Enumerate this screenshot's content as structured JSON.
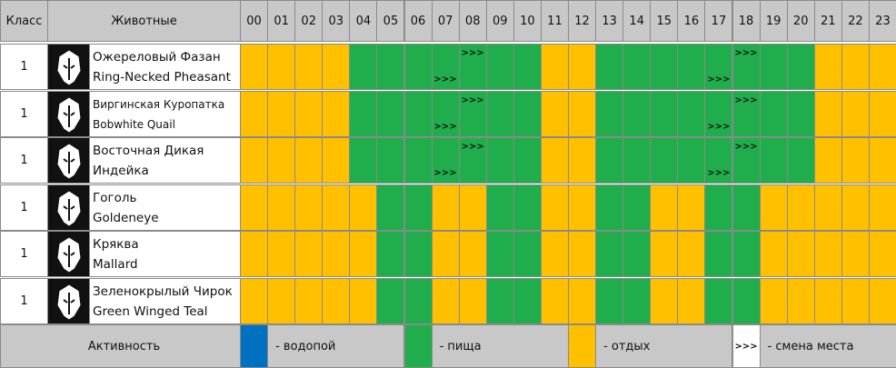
{
  "header": {
    "class": "Класс",
    "animals": "Животные",
    "hours": [
      "00",
      "01",
      "02",
      "03",
      "04",
      "05",
      "06",
      "07",
      "08",
      "09",
      "10",
      "11",
      "12",
      "13",
      "14",
      "15",
      "16",
      "17",
      "18",
      "19",
      "20",
      "21",
      "22",
      "23"
    ]
  },
  "rows": [
    {
      "class": "1",
      "name_ru": "Ожереловый Фазан",
      "name_en": "Ring-Necked Pheasant",
      "cells": [
        {
          "s": "y"
        },
        {
          "s": "y"
        },
        {
          "s": "y"
        },
        {
          "s": "y"
        },
        {
          "s": "g"
        },
        {
          "s": "g"
        },
        {
          "s": "g"
        },
        {
          "s": "g",
          "arrow_bottom": ">>>"
        },
        {
          "s": "g",
          "arrow_top": ">>>"
        },
        {
          "s": "g"
        },
        {
          "s": "g"
        },
        {
          "s": "y"
        },
        {
          "s": "y"
        },
        {
          "s": "g"
        },
        {
          "s": "g"
        },
        {
          "s": "g"
        },
        {
          "s": "g"
        },
        {
          "s": "g",
          "arrow_bottom": ">>>"
        },
        {
          "s": "g",
          "arrow_top": ">>>"
        },
        {
          "s": "g"
        },
        {
          "s": "g"
        },
        {
          "s": "y"
        },
        {
          "s": "y"
        },
        {
          "s": "y"
        }
      ]
    },
    {
      "class": "1",
      "name_ru": "Виргинская Куропатка",
      "name_en": "Bobwhite Quail",
      "cells": [
        {
          "s": "y"
        },
        {
          "s": "y"
        },
        {
          "s": "y"
        },
        {
          "s": "y"
        },
        {
          "s": "g"
        },
        {
          "s": "g"
        },
        {
          "s": "g"
        },
        {
          "s": "g",
          "arrow_bottom": ">>>"
        },
        {
          "s": "g",
          "arrow_top": ">>>"
        },
        {
          "s": "g"
        },
        {
          "s": "g"
        },
        {
          "s": "y"
        },
        {
          "s": "y"
        },
        {
          "s": "g"
        },
        {
          "s": "g"
        },
        {
          "s": "g"
        },
        {
          "s": "g"
        },
        {
          "s": "g",
          "arrow_bottom": ">>>"
        },
        {
          "s": "g",
          "arrow_top": ">>>"
        },
        {
          "s": "g"
        },
        {
          "s": "g"
        },
        {
          "s": "y"
        },
        {
          "s": "y"
        },
        {
          "s": "y"
        }
      ]
    },
    {
      "class": "1",
      "name_ru": "Восточная Дикая",
      "name_en": "Индейка",
      "cells": [
        {
          "s": "y"
        },
        {
          "s": "y"
        },
        {
          "s": "y"
        },
        {
          "s": "y"
        },
        {
          "s": "g"
        },
        {
          "s": "g"
        },
        {
          "s": "g"
        },
        {
          "s": "g",
          "arrow_bottom": ">>>"
        },
        {
          "s": "g",
          "arrow_top": ">>>"
        },
        {
          "s": "g"
        },
        {
          "s": "g"
        },
        {
          "s": "y"
        },
        {
          "s": "y"
        },
        {
          "s": "g"
        },
        {
          "s": "g"
        },
        {
          "s": "g"
        },
        {
          "s": "g"
        },
        {
          "s": "g",
          "arrow_bottom": ">>>"
        },
        {
          "s": "g",
          "arrow_top": ">>>"
        },
        {
          "s": "g"
        },
        {
          "s": "g"
        },
        {
          "s": "y"
        },
        {
          "s": "y"
        },
        {
          "s": "y"
        }
      ]
    },
    {
      "class": "1",
      "name_ru": "Гоголь",
      "name_en": "Goldeneye",
      "cells": [
        {
          "s": "y"
        },
        {
          "s": "y"
        },
        {
          "s": "y"
        },
        {
          "s": "y"
        },
        {
          "s": "y"
        },
        {
          "s": "g"
        },
        {
          "s": "g"
        },
        {
          "s": "y"
        },
        {
          "s": "y"
        },
        {
          "s": "g"
        },
        {
          "s": "g"
        },
        {
          "s": "y"
        },
        {
          "s": "y"
        },
        {
          "s": "g"
        },
        {
          "s": "g"
        },
        {
          "s": "y"
        },
        {
          "s": "y"
        },
        {
          "s": "g"
        },
        {
          "s": "g"
        },
        {
          "s": "y"
        },
        {
          "s": "y"
        },
        {
          "s": "y"
        },
        {
          "s": "y"
        },
        {
          "s": "y"
        }
      ]
    },
    {
      "class": "1",
      "name_ru": "Кряква",
      "name_en": "Mallard",
      "cells": [
        {
          "s": "y"
        },
        {
          "s": "y"
        },
        {
          "s": "y"
        },
        {
          "s": "y"
        },
        {
          "s": "y"
        },
        {
          "s": "g"
        },
        {
          "s": "g"
        },
        {
          "s": "y"
        },
        {
          "s": "y"
        },
        {
          "s": "g"
        },
        {
          "s": "g"
        },
        {
          "s": "y"
        },
        {
          "s": "y"
        },
        {
          "s": "g"
        },
        {
          "s": "g"
        },
        {
          "s": "y"
        },
        {
          "s": "y"
        },
        {
          "s": "g"
        },
        {
          "s": "g"
        },
        {
          "s": "y"
        },
        {
          "s": "y"
        },
        {
          "s": "y"
        },
        {
          "s": "y"
        },
        {
          "s": "y"
        }
      ]
    },
    {
      "class": "1",
      "name_ru": "Зеленокрылый Чирок",
      "name_en": "Green Winged Teal",
      "cells": [
        {
          "s": "y"
        },
        {
          "s": "y"
        },
        {
          "s": "y"
        },
        {
          "s": "y"
        },
        {
          "s": "y"
        },
        {
          "s": "g"
        },
        {
          "s": "g"
        },
        {
          "s": "y"
        },
        {
          "s": "y"
        },
        {
          "s": "g"
        },
        {
          "s": "g"
        },
        {
          "s": "y"
        },
        {
          "s": "y"
        },
        {
          "s": "g"
        },
        {
          "s": "g"
        },
        {
          "s": "y"
        },
        {
          "s": "y"
        },
        {
          "s": "g"
        },
        {
          "s": "g"
        },
        {
          "s": "y"
        },
        {
          "s": "y"
        },
        {
          "s": "y"
        },
        {
          "s": "y"
        },
        {
          "s": "y"
        }
      ]
    }
  ],
  "legend": {
    "title": "Активность",
    "items": [
      {
        "color": "#0070c0",
        "label": "- водопой"
      },
      {
        "color": "#1fae4b",
        "label": "- пища"
      },
      {
        "color": "#ffc000",
        "label": "- отдых"
      },
      {
        "color": "#ffffff",
        "symbol": ">>>",
        "label": "- смена места"
      }
    ]
  },
  "colors": {
    "g": "#1fae4b",
    "y": "#ffc000"
  }
}
